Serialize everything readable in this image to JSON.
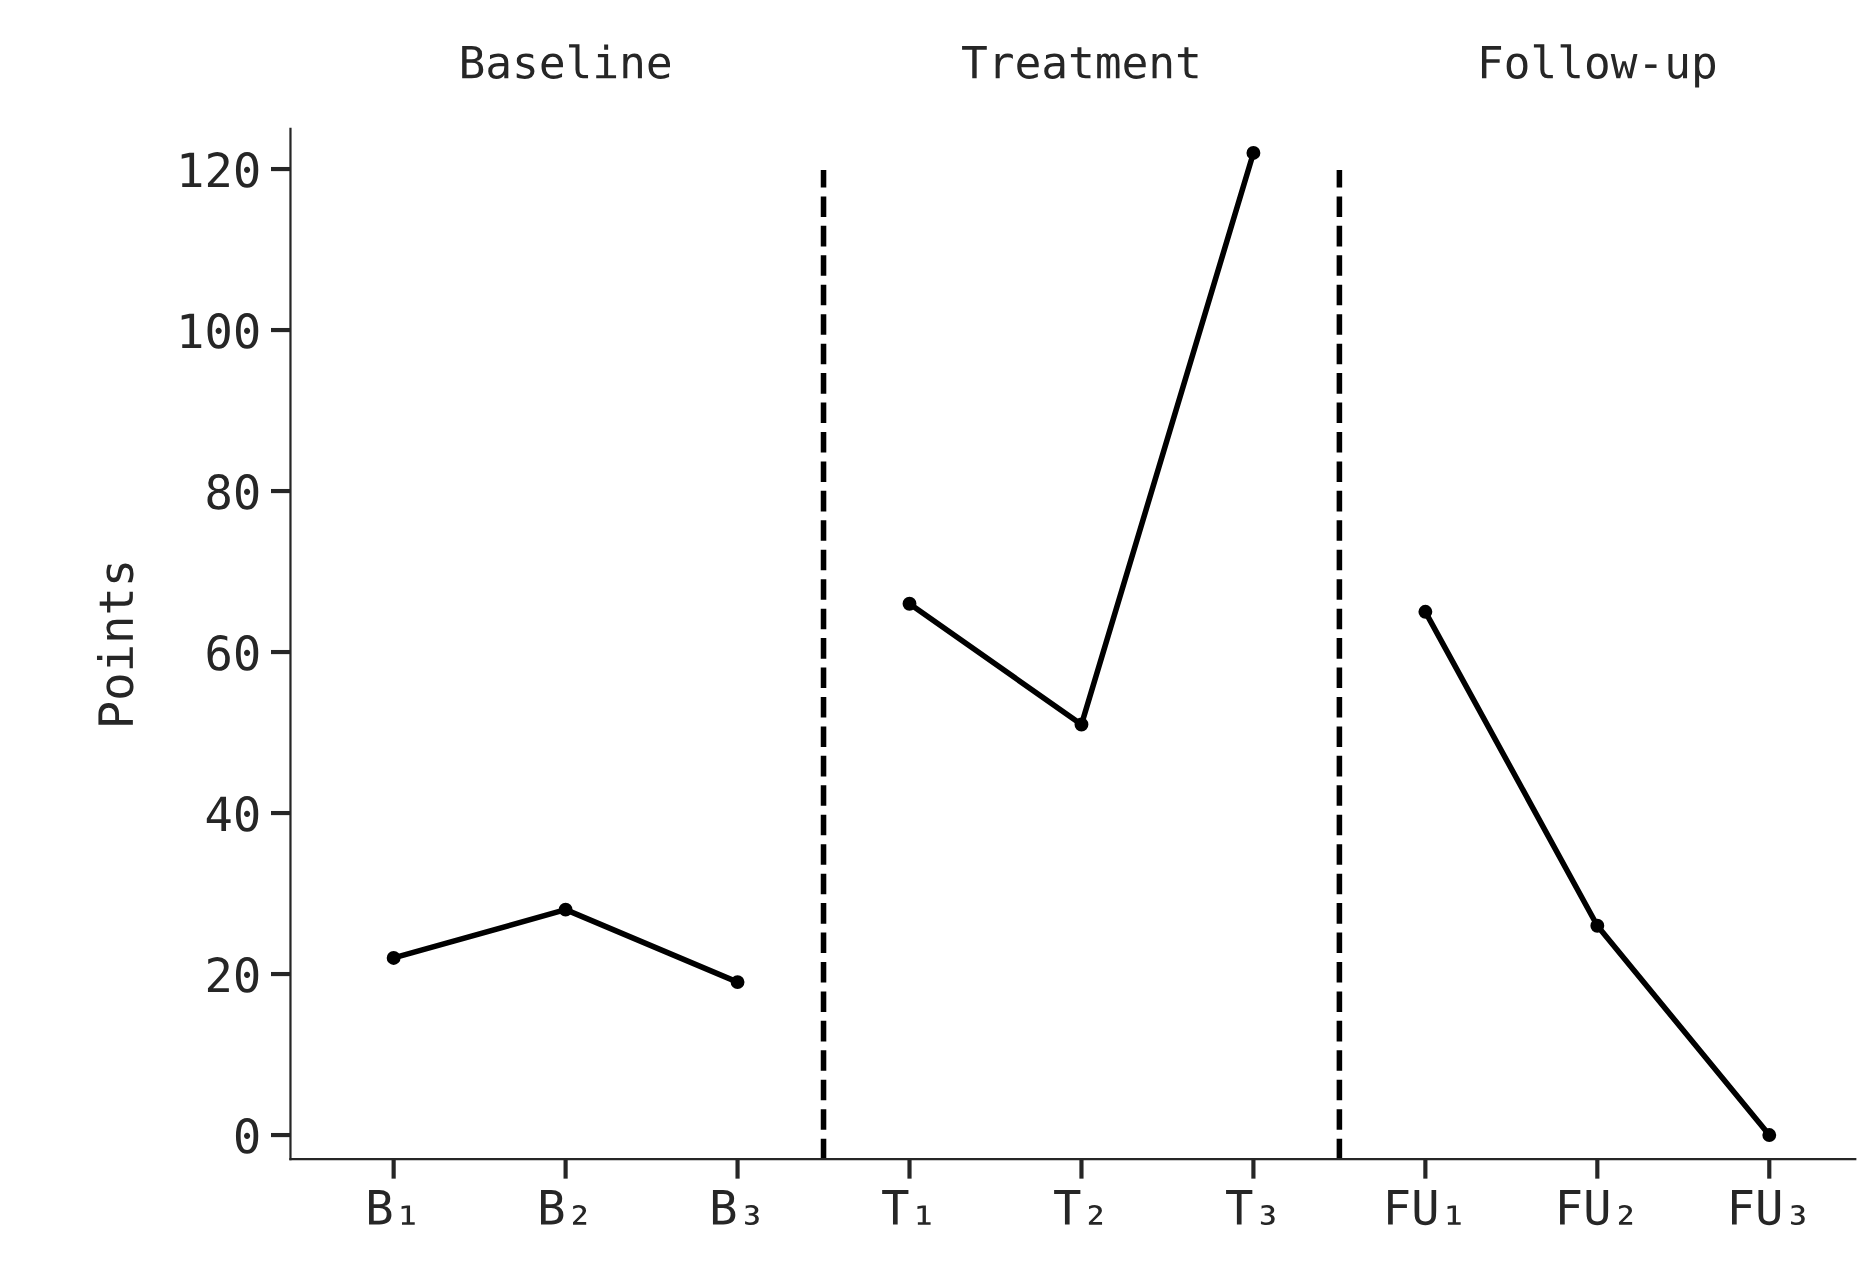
{
  "chart_data": {
    "type": "line",
    "ylabel": "Points",
    "categories": [
      "B₁",
      "B₂",
      "B₃",
      "T₁",
      "T₂",
      "T₃",
      "FU₁",
      "FU₂",
      "FU₃"
    ],
    "series": [
      {
        "color": "#000000",
        "values": [
          22,
          28,
          19,
          null,
          null,
          null,
          null,
          null,
          null
        ]
      },
      {
        "color": "#000000",
        "values": [
          null,
          null,
          null,
          66,
          51,
          122,
          null,
          null,
          null
        ]
      },
      {
        "color": "#000000",
        "values": [
          null,
          null,
          null,
          null,
          null,
          null,
          65,
          26,
          0
        ]
      }
    ],
    "ylim": [
      -3,
      125
    ],
    "yticks": [
      0,
      20,
      40,
      60,
      80,
      100,
      120
    ],
    "annotations": [
      "Baseline",
      "Treatment",
      "Follow-up"
    ],
    "marker": "circle",
    "line_style": "solid",
    "grid": false,
    "legend": false
  }
}
